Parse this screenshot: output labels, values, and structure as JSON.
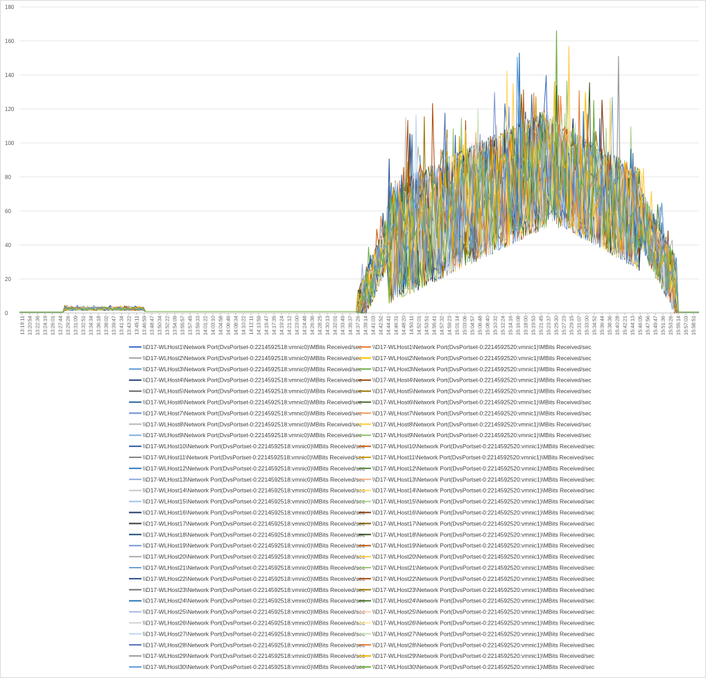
{
  "chart_data": {
    "type": "line",
    "title": "",
    "xlabel": "",
    "ylabel": "",
    "ylim": [
      0,
      180
    ],
    "y_ticks": [
      0,
      20,
      40,
      60,
      80,
      100,
      120,
      140,
      160,
      180
    ],
    "grid": "horizontal",
    "legend_placement": "bottom",
    "x_tick_labels": [
      "13:19:11",
      "13:20:54",
      "13:22:36",
      "13:24:19",
      "13:26:01",
      "13:27:44",
      "13:29:26",
      "13:31:09",
      "13:32:51",
      "13:34:34",
      "13:36:18",
      "13:38:02",
      "13:39:47",
      "13:41:34",
      "13:43:22",
      "13:45:11",
      "13:46:59",
      "13:48:47",
      "13:50:34",
      "13:52:22",
      "13:54:09",
      "13:55:57",
      "13:57:45",
      "13:59:33",
      "14:01:22",
      "14:03:10",
      "14:04:58",
      "14:06:46",
      "14:08:34",
      "14:10:22",
      "14:12:11",
      "14:13:59",
      "14:15:47",
      "14:17:35",
      "14:19:24",
      "14:21:12",
      "14:23:00",
      "14:24:48",
      "14:26:36",
      "14:28:25",
      "14:30:13",
      "14:32:01",
      "14:33:49",
      "14:35:37",
      "14:37:26",
      "14:39:14",
      "14:41:03",
      "14:42:52",
      "14:44:41",
      "14:46:31",
      "14:48:20",
      "14:50:11",
      "14:52:01",
      "14:53:51",
      "14:55:41",
      "14:57:32",
      "14:59:23",
      "15:01:14",
      "15:03:06",
      "15:04:57",
      "15:06:48",
      "15:08:40",
      "15:10:32",
      "15:12:24",
      "15:14:16",
      "15:16:08",
      "15:18:00",
      "15:19:53",
      "15:21:45",
      "15:23:37",
      "15:25:30",
      "15:27:23",
      "15:29:15",
      "15:31:07",
      "15:33:00",
      "15:34:52",
      "15:36:44",
      "15:38:36",
      "15:40:28",
      "15:42:21",
      "15:44:13",
      "15:46:05",
      "15:47:56",
      "15:49:47",
      "15:51:36",
      "15:53:26",
      "15:55:14",
      "15:57:03",
      "15:58:51"
    ],
    "series_shape": {
      "n_points": 330,
      "phases": [
        {
          "from_index": 0,
          "to_index": 21,
          "value": 0.5
        },
        {
          "from_index": 22,
          "to_index": 60,
          "base": 2.5,
          "noise": 1.0
        },
        {
          "from_index": 61,
          "to_index": 163,
          "value": 0.8
        },
        {
          "from_index": 164,
          "to_index": 178,
          "ramp_to": 40,
          "noise": 14
        },
        {
          "from_index": 179,
          "to_index": 255,
          "ramp_to": 85,
          "noise": 35
        },
        {
          "from_index": 256,
          "to_index": 300,
          "ramp_to": 55,
          "noise": 30
        },
        {
          "from_index": 301,
          "to_index": 318,
          "ramp_to": 15,
          "noise": 18
        },
        {
          "from_index": 319,
          "to_index": 329,
          "value": 0.5
        }
      ],
      "peaks": [
        {
          "index": 260,
          "value": 166
        },
        {
          "index": 242,
          "value": 153
        },
        {
          "index": 266,
          "value": 157
        },
        {
          "index": 290,
          "value": 151
        }
      ]
    },
    "series": [
      {
        "name": "\\\\D17-WLHost1\\Network Port(DvsPortset-0:2214592518:vmnic0)\\MBits Received/sec",
        "color": "#4472C4"
      },
      {
        "name": "\\\\D17-WLHost1\\Network Port(DvsPortset-0:2214592520:vmnic1)\\MBits Received/sec",
        "color": "#ED7D31"
      },
      {
        "name": "\\\\D17-WLHost2\\Network Port(DvsPortset-0:2214592518:vmnic0)\\MBits Received/sec",
        "color": "#A5A5A5"
      },
      {
        "name": "\\\\D17-WLHost2\\Network Port(DvsPortset-0:2214592520:vmnic1)\\MBits Received/sec",
        "color": "#FFC000"
      },
      {
        "name": "\\\\D17-WLHost3\\Network Port(DvsPortset-0:2214592518:vmnic0)\\MBits Received/sec",
        "color": "#5B9BD5"
      },
      {
        "name": "\\\\D17-WLHost3\\Network Port(DvsPortset-0:2214592520:vmnic1)\\MBits Received/sec",
        "color": "#70AD47"
      },
      {
        "name": "\\\\D17-WLHost4\\Network Port(DvsPortset-0:2214592518:vmnic0)\\MBits Received/sec",
        "color": "#264478"
      },
      {
        "name": "\\\\D17-WLHost4\\Network Port(DvsPortset-0:2214592520:vmnic1)\\MBits Received/sec",
        "color": "#9E480E"
      },
      {
        "name": "\\\\D17-WLHost5\\Network Port(DvsPortset-0:2214592518:vmnic0)\\MBits Received/sec",
        "color": "#636363"
      },
      {
        "name": "\\\\D17-WLHost5\\Network Port(DvsPortset-0:2214592520:vmnic1)\\MBits Received/sec",
        "color": "#997300"
      },
      {
        "name": "\\\\D17-WLHost6\\Network Port(DvsPortset-0:2214592518:vmnic0)\\MBits Received/sec",
        "color": "#255E91"
      },
      {
        "name": "\\\\D17-WLHost6\\Network Port(DvsPortset-0:2214592520:vmnic1)\\MBits Received/sec",
        "color": "#43682B"
      },
      {
        "name": "\\\\D17-WLHost7\\Network Port(DvsPortset-0:2214592518:vmnic0)\\MBits Received/sec",
        "color": "#698ED0"
      },
      {
        "name": "\\\\D17-WLHost7\\Network Port(DvsPortset-0:2214592520:vmnic1)\\MBits Received/sec",
        "color": "#F1975A"
      },
      {
        "name": "\\\\D17-WLHost8\\Network Port(DvsPortset-0:2214592518:vmnic0)\\MBits Received/sec",
        "color": "#B7B7B7"
      },
      {
        "name": "\\\\D17-WLHost8\\Network Port(DvsPortset-0:2214592520:vmnic1)\\MBits Received/sec",
        "color": "#FFCD33"
      },
      {
        "name": "\\\\D17-WLHost9\\Network Port(DvsPortset-0:2214592518:vmnic0)\\MBits Received/sec",
        "color": "#7CAFDD"
      },
      {
        "name": "\\\\D17-WLHost9\\Network Port(DvsPortset-0:2214592520:vmnic1)\\MBits Received/sec",
        "color": "#8CC168"
      },
      {
        "name": "\\\\D17-WLHost10\\Network Port(DvsPortset-0:2214592518:vmnic0)\\MBits Received/sec",
        "color": "#335AA1"
      },
      {
        "name": "\\\\D17-WLHost10\\Network Port(DvsPortset-0:2214592520:vmnic1)\\MBits Received/sec",
        "color": "#D26012"
      },
      {
        "name": "\\\\D17-WLHost11\\Network Port(DvsPortset-0:2214592518:vmnic0)\\MBits Received/sec",
        "color": "#848484"
      },
      {
        "name": "\\\\D17-WLHost11\\Network Port(DvsPortset-0:2214592520:vmnic1)\\MBits Received/sec",
        "color": "#CC9A00"
      },
      {
        "name": "\\\\D17-WLHost12\\Network Port(DvsPortset-0:2214592518:vmnic0)\\MBits Received/sec",
        "color": "#327DC2"
      },
      {
        "name": "\\\\D17-WLHost12\\Network Port(DvsPortset-0:2214592520:vmnic1)\\MBits Received/sec",
        "color": "#5A8A39"
      },
      {
        "name": "\\\\D17-WLHost13\\Network Port(DvsPortset-0:2214592518:vmnic0)\\MBits Received/sec",
        "color": "#8FAADC"
      },
      {
        "name": "\\\\D17-WLHost13\\Network Port(DvsPortset-0:2214592520:vmnic1)\\MBits Received/sec",
        "color": "#F4B183"
      },
      {
        "name": "\\\\D17-WLHost14\\Network Port(DvsPortset-0:2214592518:vmnic0)\\MBits Received/sec",
        "color": "#C9C9C9"
      },
      {
        "name": "\\\\D17-WLHost14\\Network Port(DvsPortset-0:2214592520:vmnic1)\\MBits Received/sec",
        "color": "#FFD966"
      },
      {
        "name": "\\\\D17-WLHost15\\Network Port(DvsPortset-0:2214592518:vmnic0)\\MBits Received/sec",
        "color": "#9DC3E6"
      },
      {
        "name": "\\\\D17-WLHost15\\Network Port(DvsPortset-0:2214592520:vmnic1)\\MBits Received/sec",
        "color": "#A9D18E"
      },
      {
        "name": "\\\\D17-WLHost16\\Network Port(DvsPortset-0:2214592518:vmnic0)\\MBits Received/sec",
        "color": "#1F3864"
      },
      {
        "name": "\\\\D17-WLHost16\\Network Port(DvsPortset-0:2214592520:vmnic1)\\MBits Received/sec",
        "color": "#843C0C"
      },
      {
        "name": "\\\\D17-WLHost17\\Network Port(DvsPortset-0:2214592518:vmnic0)\\MBits Received/sec",
        "color": "#3A3A3A"
      },
      {
        "name": "\\\\D17-WLHost17\\Network Port(DvsPortset-0:2214592520:vmnic1)\\MBits Received/sec",
        "color": "#7F6000"
      },
      {
        "name": "\\\\D17-WLHost18\\Network Port(DvsPortset-0:2214592518:vmnic0)\\MBits Received/sec",
        "color": "#1F4E79"
      },
      {
        "name": "\\\\D17-WLHost18\\Network Port(DvsPortset-0:2214592520:vmnic1)\\MBits Received/sec",
        "color": "#385723"
      },
      {
        "name": "\\\\D17-WLHost19\\Network Port(DvsPortset-0:2214592518:vmnic0)\\MBits Received/sec",
        "color": "#7F96D6"
      },
      {
        "name": "\\\\D17-WLHost19\\Network Port(DvsPortset-0:2214592520:vmnic1)\\MBits Received/sec",
        "color": "#C55A11"
      },
      {
        "name": "\\\\D17-WLHost20\\Network Port(DvsPortset-0:2214592518:vmnic0)\\MBits Received/sec",
        "color": "#AEAEAE"
      },
      {
        "name": "\\\\D17-WLHost20\\Network Port(DvsPortset-0:2214592520:vmnic1)\\MBits Received/sec",
        "color": "#FFCC4D"
      },
      {
        "name": "\\\\D17-WLHost21\\Network Port(DvsPortset-0:2214592518:vmnic0)\\MBits Received/sec",
        "color": "#6FA3D6"
      },
      {
        "name": "\\\\D17-WLHost21\\Network Port(DvsPortset-0:2214592520:vmnic1)\\MBits Received/sec",
        "color": "#9BC67C"
      },
      {
        "name": "\\\\D17-WLHost22\\Network Port(DvsPortset-0:2214592518:vmnic0)\\MBits Received/sec",
        "color": "#2F4F8F"
      },
      {
        "name": "\\\\D17-WLHost22\\Network Port(DvsPortset-0:2214592520:vmnic1)\\MBits Received/sec",
        "color": "#B05010"
      },
      {
        "name": "\\\\D17-WLHost23\\Network Port(DvsPortset-0:2214592518:vmnic0)\\MBits Received/sec",
        "color": "#737373"
      },
      {
        "name": "\\\\D17-WLHost23\\Network Port(DvsPortset-0:2214592520:vmnic1)\\MBits Received/sec",
        "color": "#A57C00"
      },
      {
        "name": "\\\\D17-WLHost24\\Network Port(DvsPortset-0:2214592518:vmnic0)\\MBits Received/sec",
        "color": "#2E75B6"
      },
      {
        "name": "\\\\D17-WLHost24\\Network Port(DvsPortset-0:2214592520:vmnic1)\\MBits Received/sec",
        "color": "#4E7A30"
      },
      {
        "name": "\\\\D17-WLHost25\\Network Port(DvsPortset-0:2214592518:vmnic0)\\MBits Received/sec",
        "color": "#A4B7E1"
      },
      {
        "name": "\\\\D17-WLHost25\\Network Port(DvsPortset-0:2214592520:vmnic1)\\MBits Received/sec",
        "color": "#F8CBAD"
      },
      {
        "name": "\\\\D17-WLHost26\\Network Port(DvsPortset-0:2214592518:vmnic0)\\MBits Received/sec",
        "color": "#D0D0D0"
      },
      {
        "name": "\\\\D17-WLHost26\\Network Port(DvsPortset-0:2214592520:vmnic1)\\MBits Received/sec",
        "color": "#FFE699"
      },
      {
        "name": "\\\\D17-WLHost27\\Network Port(DvsPortset-0:2214592518:vmnic0)\\MBits Received/sec",
        "color": "#BDD7EE"
      },
      {
        "name": "\\\\D17-WLHost27\\Network Port(DvsPortset-0:2214592520:vmnic1)\\MBits Received/sec",
        "color": "#C5E0B4"
      },
      {
        "name": "\\\\D17-WLHost28\\Network Port(DvsPortset-0:2214592518:vmnic0)\\MBits Received/sec",
        "color": "#4A6FB5"
      },
      {
        "name": "\\\\D17-WLHost28\\Network Port(DvsPortset-0:2214592520:vmnic1)\\MBits Received/sec",
        "color": "#E07B39"
      },
      {
        "name": "\\\\D17-WLHost29\\Network Port(DvsPortset-0:2214592518:vmnic0)\\MBits Received/sec",
        "color": "#999999"
      },
      {
        "name": "\\\\D17-WLHost29\\Network Port(DvsPortset-0:2214592520:vmnic1)\\MBits Received/sec",
        "color": "#F0B400"
      },
      {
        "name": "\\\\D17-WLHost30\\Network Port(DvsPortset-0:2214592518:vmnic0)\\MBits Received/sec",
        "color": "#5E9BD8"
      },
      {
        "name": "\\\\D17-WLHost30\\Network Port(DvsPortset-0:2214592520:vmnic1)\\MBits Received/sec",
        "color": "#6FB03F"
      }
    ]
  }
}
